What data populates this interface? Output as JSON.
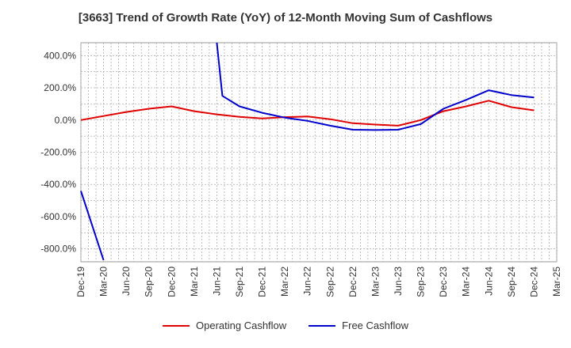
{
  "chart_data": {
    "type": "line",
    "title": "[3663]  Trend of Growth Rate (YoY) of 12-Month Moving Sum of Cashflows",
    "x_labels": [
      "Dec-19",
      "Mar-20",
      "Jun-20",
      "Sep-20",
      "Dec-20",
      "Mar-21",
      "Jun-21",
      "Sep-21",
      "Dec-21",
      "Mar-22",
      "Jun-22",
      "Sep-22",
      "Dec-22",
      "Mar-23",
      "Jun-23",
      "Sep-23",
      "Dec-23",
      "Mar-24",
      "Jun-24",
      "Sep-24",
      "Dec-24",
      "Mar-25"
    ],
    "y_ticks": [
      "400.0%",
      "200.0%",
      "0.0%",
      "-200.0%",
      "-400.0%",
      "-600.0%",
      "-800.0%"
    ],
    "ylim": [
      -880,
      480
    ],
    "grid": true,
    "legend_position": "bottom",
    "series": [
      {
        "name": "Operating Cashflow",
        "color": "#e00000",
        "points": [
          {
            "x": "Dec-19",
            "y": 0
          },
          {
            "x": "Mar-20",
            "y": 25
          },
          {
            "x": "Jun-20",
            "y": 50
          },
          {
            "x": "Sep-20",
            "y": 70
          },
          {
            "x": "Dec-20",
            "y": 85
          },
          {
            "x": "Mar-21",
            "y": 55
          },
          {
            "x": "Jun-21",
            "y": 35
          },
          {
            "x": "Sep-21",
            "y": 20
          },
          {
            "x": "Dec-21",
            "y": 10
          },
          {
            "x": "Mar-22",
            "y": 18
          },
          {
            "x": "Jun-22",
            "y": 22
          },
          {
            "x": "Sep-22",
            "y": 5
          },
          {
            "x": "Dec-22",
            "y": -20
          },
          {
            "x": "Mar-23",
            "y": -28
          },
          {
            "x": "Jun-23",
            "y": -35
          },
          {
            "x": "Sep-23",
            "y": 0
          },
          {
            "x": "Dec-23",
            "y": 55
          },
          {
            "x": "Mar-24",
            "y": 85
          },
          {
            "x": "Jun-24",
            "y": 120
          },
          {
            "x": "Sep-24",
            "y": 80
          },
          {
            "x": "Dec-24",
            "y": 60
          }
        ]
      },
      {
        "name": "Free Cashflow",
        "color": "#0000cc",
        "points": [
          {
            "x": "Dec-19",
            "y": -440
          },
          {
            "x": "Mar-20",
            "y": -870
          }
        ],
        "points_continued": [
          {
            "x": "Jun-21",
            "y": 480
          },
          {
            "x": "Jun-21+",
            "y": 150
          },
          {
            "x": "Sep-21",
            "y": 85
          },
          {
            "x": "Dec-21",
            "y": 45
          },
          {
            "x": "Mar-22",
            "y": 15
          },
          {
            "x": "Jun-22",
            "y": -5
          },
          {
            "x": "Sep-22",
            "y": -35
          },
          {
            "x": "Dec-22",
            "y": -60
          },
          {
            "x": "Mar-23",
            "y": -62
          },
          {
            "x": "Jun-23",
            "y": -60
          },
          {
            "x": "Sep-23",
            "y": -25
          },
          {
            "x": "Dec-23",
            "y": 70
          },
          {
            "x": "Mar-24",
            "y": 125
          },
          {
            "x": "Jun-24",
            "y": 185
          },
          {
            "x": "Sep-24",
            "y": 155
          },
          {
            "x": "Dec-24",
            "y": 140
          }
        ]
      }
    ]
  },
  "legend": {
    "items": [
      {
        "label": "Operating Cashflow",
        "color": "#e00000"
      },
      {
        "label": "Free Cashflow",
        "color": "#0000cc"
      }
    ]
  }
}
